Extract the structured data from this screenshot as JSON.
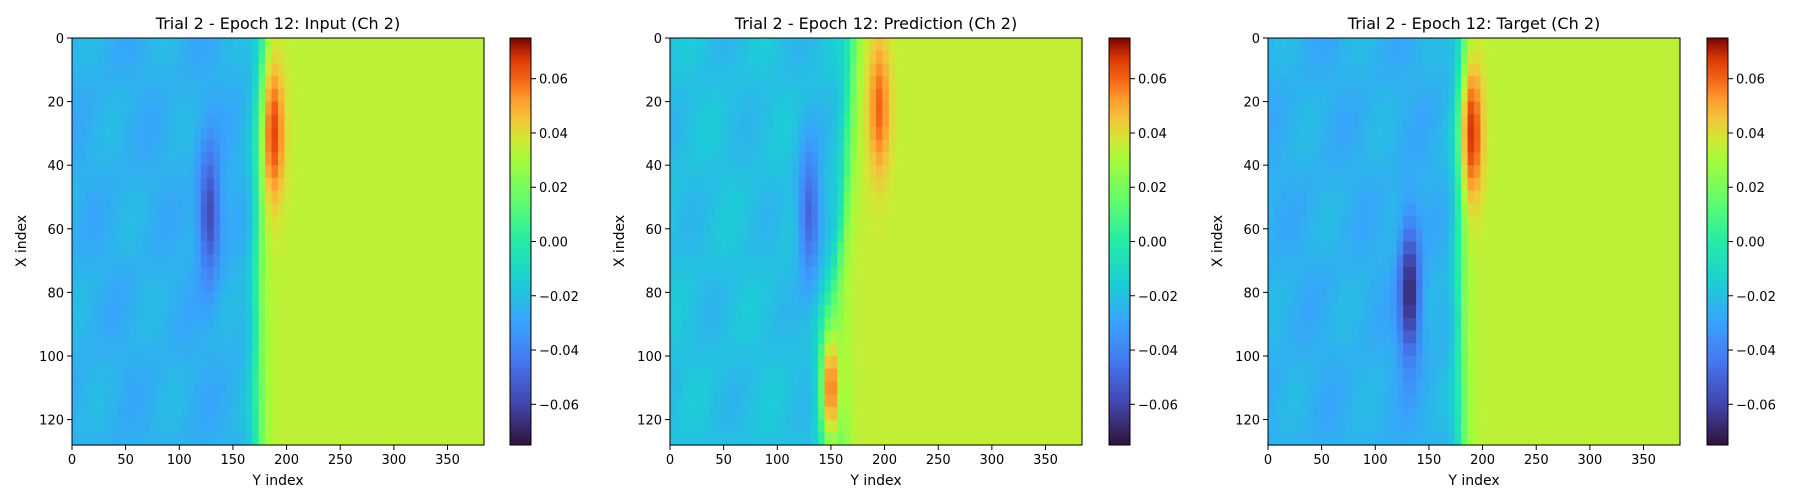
{
  "chart_data": [
    {
      "type": "heatmap",
      "title": "Trial 2 - Epoch 12: Input (Ch 2)",
      "xlabel": "Y index",
      "ylabel": "X index",
      "xlim": [
        0,
        384
      ],
      "ylim": [
        128,
        0
      ],
      "xticks": [
        0,
        50,
        100,
        150,
        200,
        250,
        300,
        350
      ],
      "yticks": [
        0,
        20,
        40,
        60,
        80,
        100,
        120
      ],
      "colormap": "turbo",
      "colorbar": {
        "range": [
          -0.075,
          0.075
        ],
        "ticks": [
          "0.06",
          "0.04",
          "0.02",
          "0.00",
          "−0.02",
          "−0.04",
          "−0.06"
        ],
        "tick_values": [
          0.06,
          0.04,
          0.02,
          0.0,
          -0.02,
          -0.04,
          -0.06
        ]
      },
      "field": {
        "background_left": -0.025,
        "background_right": 0.034,
        "front_y": [
          [
            0,
            178
          ],
          [
            40,
            174
          ],
          [
            80,
            172
          ],
          [
            128,
            173
          ]
        ],
        "features": [
          {
            "kind": "negative_blob",
            "x": 55,
            "y": 128,
            "value": -0.058
          },
          {
            "kind": "positive_blob",
            "x": 30,
            "y": 188,
            "value": 0.065
          }
        ]
      }
    },
    {
      "type": "heatmap",
      "title": "Trial 2 - Epoch 12: Prediction (Ch 2)",
      "xlabel": "Y index",
      "ylabel": "X index",
      "xlim": [
        0,
        384
      ],
      "ylim": [
        128,
        0
      ],
      "xticks": [
        0,
        50,
        100,
        150,
        200,
        250,
        300,
        350
      ],
      "yticks": [
        0,
        20,
        40,
        60,
        80,
        100,
        120
      ],
      "colormap": "turbo",
      "colorbar": {
        "range": [
          -0.075,
          0.075
        ],
        "ticks": [
          "0.06",
          "0.04",
          "0.02",
          "0.00",
          "−0.02",
          "−0.04",
          "−0.06"
        ],
        "tick_values": [
          0.06,
          0.04,
          0.02,
          0.0,
          -0.02,
          -0.04,
          -0.06
        ]
      },
      "field": {
        "background_left": -0.02,
        "background_right": 0.035,
        "front_y": [
          [
            0,
            170
          ],
          [
            40,
            165
          ],
          [
            80,
            155
          ],
          [
            128,
            160
          ]
        ],
        "features": [
          {
            "kind": "negative_blob",
            "x": 55,
            "y": 130,
            "value": -0.05
          },
          {
            "kind": "positive_blob",
            "x": 22,
            "y": 195,
            "value": 0.06
          },
          {
            "kind": "positive_blob",
            "x": 110,
            "y": 150,
            "value": 0.06
          }
        ]
      }
    },
    {
      "type": "heatmap",
      "title": "Trial 2 - Epoch 12: Target (Ch 2)",
      "xlabel": "Y index",
      "ylabel": "X index",
      "xlim": [
        0,
        384
      ],
      "ylim": [
        128,
        0
      ],
      "xticks": [
        0,
        50,
        100,
        150,
        200,
        250,
        300,
        350
      ],
      "yticks": [
        0,
        20,
        40,
        60,
        80,
        100,
        120
      ],
      "colormap": "turbo",
      "colorbar": {
        "range": [
          -0.075,
          0.075
        ],
        "ticks": [
          "0.06",
          "0.04",
          "0.02",
          "0.00",
          "−0.02",
          "−0.04",
          "−0.06"
        ],
        "tick_values": [
          0.06,
          0.04,
          0.02,
          0.0,
          -0.02,
          -0.04,
          -0.06
        ]
      },
      "field": {
        "background_left": -0.025,
        "background_right": 0.034,
        "front_y": [
          [
            0,
            182
          ],
          [
            40,
            180
          ],
          [
            80,
            178
          ],
          [
            128,
            180
          ]
        ],
        "features": [
          {
            "kind": "negative_blob",
            "x": 80,
            "y": 132,
            "value": -0.07
          },
          {
            "kind": "positive_blob",
            "x": 30,
            "y": 190,
            "value": 0.068
          }
        ]
      }
    }
  ]
}
